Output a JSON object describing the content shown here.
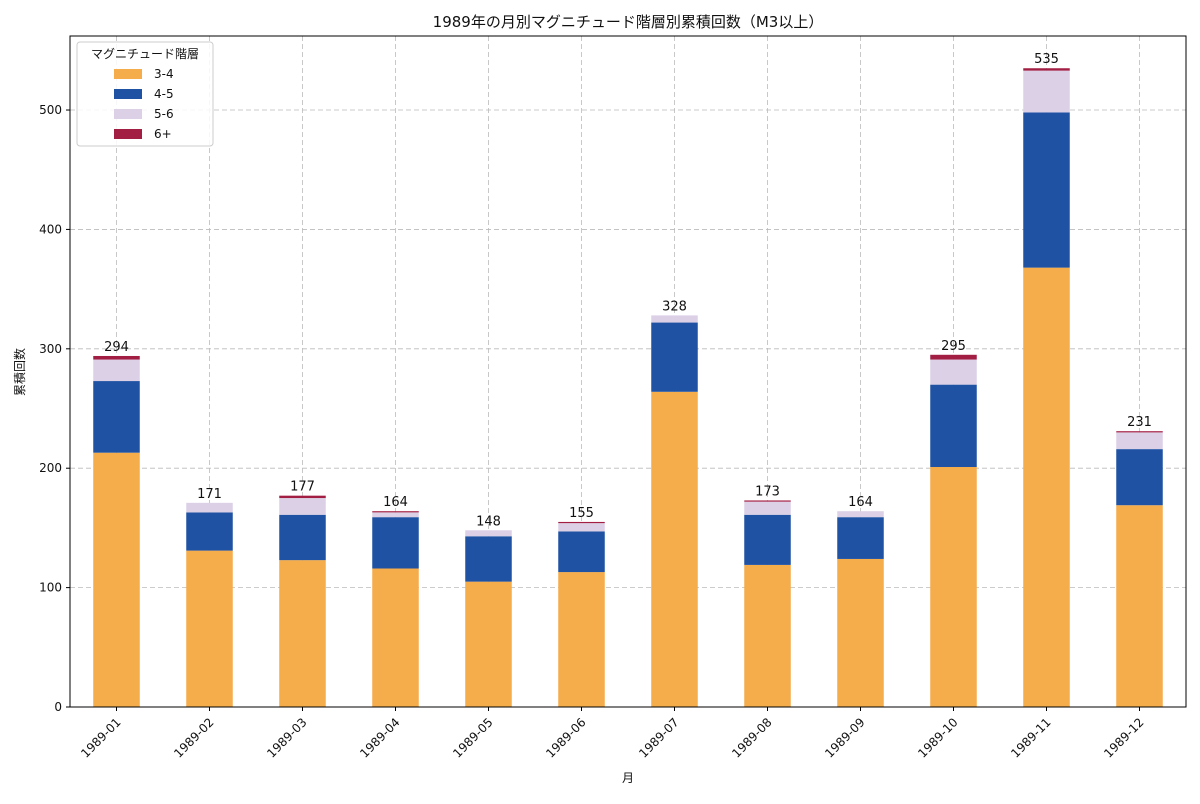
{
  "chart_data": {
    "type": "bar",
    "stacked": true,
    "title": "1989年の月別マグニチュード階層別累積回数（M3以上）",
    "xlabel": "月",
    "ylabel": "累積回数",
    "ylim": [
      0,
      562
    ],
    "yticks": [
      0,
      100,
      200,
      300,
      400,
      500
    ],
    "grid": true,
    "legend": {
      "title": "マグニチュード階層",
      "placement": "top-left"
    },
    "categories": [
      "1989-01",
      "1989-02",
      "1989-03",
      "1989-04",
      "1989-05",
      "1989-06",
      "1989-07",
      "1989-08",
      "1989-09",
      "1989-10",
      "1989-11",
      "1989-12"
    ],
    "series": [
      {
        "name": "3-4",
        "color": "#f5ac4a",
        "values": [
          213,
          131,
          123,
          116,
          105,
          113,
          264,
          119,
          124,
          201,
          368,
          169
        ]
      },
      {
        "name": "4-5",
        "color": "#1f52a3",
        "values": [
          60,
          32,
          38,
          43,
          38,
          34,
          58,
          42,
          35,
          69,
          130,
          47
        ]
      },
      {
        "name": "5-6",
        "color": "#dcd0e6",
        "values": [
          18,
          8,
          14,
          4,
          5,
          7,
          6,
          11,
          5,
          21,
          35,
          14
        ]
      },
      {
        "name": "6+",
        "color": "#a21f43",
        "values": [
          3,
          0,
          2,
          1,
          0,
          1,
          0,
          1,
          0,
          4,
          2,
          1
        ]
      }
    ],
    "totals": [
      294,
      171,
      177,
      164,
      148,
      155,
      328,
      173,
      164,
      295,
      535,
      231
    ]
  }
}
